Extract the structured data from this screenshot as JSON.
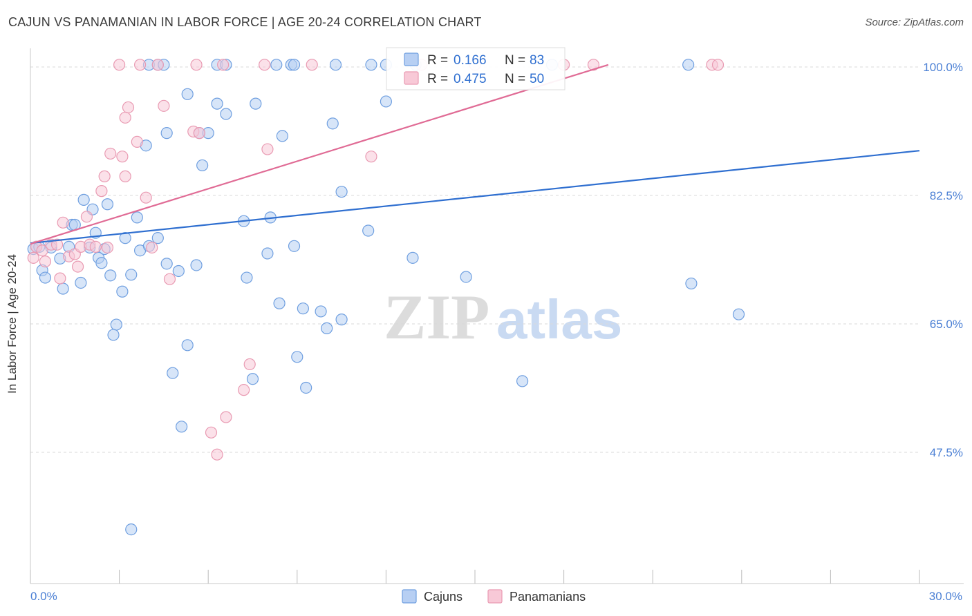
{
  "header": {
    "title": "CAJUN VS PANAMANIAN IN LABOR FORCE | AGE 20-24 CORRELATION CHART",
    "source": "Source: ZipAtlas.com"
  },
  "watermark": {
    "zip": "ZIP",
    "atlas": "atlas"
  },
  "chart_data": {
    "type": "scatter",
    "title": "CAJUN VS PANAMANIAN IN LABOR FORCE | AGE 20-24 CORRELATION CHART",
    "ylabel": "In Labor Force | Age 20-24",
    "xlim": [
      0,
      30
    ],
    "ylim": [
      33,
      101
    ],
    "x_tick_labels": [
      {
        "value": 0,
        "label": "0.0%"
      },
      {
        "value": 30,
        "label": "30.0%"
      }
    ],
    "y_tick_labels": [
      {
        "value": 47.5,
        "label": "47.5%"
      },
      {
        "value": 65.0,
        "label": "65.0%"
      },
      {
        "value": 82.5,
        "label": "82.5%"
      },
      {
        "value": 100.0,
        "label": "100.0%"
      }
    ],
    "grid": "horizontal dashed",
    "legend_placement": "top-center",
    "series": [
      {
        "name": "Cajuns",
        "color": "#6f9fe0",
        "fill": "#b7cff3",
        "line_color": "#2f6fd0",
        "R": "0.166",
        "N": "83",
        "trend": {
          "x": [
            0,
            30
          ],
          "y": [
            76.0,
            88.6
          ]
        },
        "points": [
          [
            0.2,
            75.5
          ],
          [
            0.4,
            72.3
          ],
          [
            0.5,
            71.3
          ],
          [
            0.7,
            75.4
          ],
          [
            1.0,
            73.9
          ],
          [
            1.1,
            69.8
          ],
          [
            1.4,
            78.5
          ],
          [
            1.7,
            70.6
          ],
          [
            1.8,
            81.9
          ],
          [
            1.5,
            78.5
          ],
          [
            2.1,
            80.6
          ],
          [
            2.2,
            77.4
          ],
          [
            2.3,
            74.0
          ],
          [
            2.4,
            73.3
          ],
          [
            2.5,
            75.2
          ],
          [
            2.6,
            81.3
          ],
          [
            2.7,
            71.6
          ],
          [
            2.9,
            64.9
          ],
          [
            2.8,
            63.5
          ],
          [
            3.1,
            69.4
          ],
          [
            3.2,
            76.7
          ],
          [
            3.4,
            71.7
          ],
          [
            3.6,
            79.5
          ],
          [
            3.7,
            75.0
          ],
          [
            3.9,
            89.3
          ],
          [
            4.0,
            75.6
          ],
          [
            4.3,
            76.7
          ],
          [
            4.6,
            73.2
          ],
          [
            4.6,
            91.0
          ],
          [
            4.8,
            58.3
          ],
          [
            5.0,
            72.2
          ],
          [
            5.1,
            51.0
          ],
          [
            5.3,
            96.3
          ],
          [
            5.3,
            62.1
          ],
          [
            5.6,
            73.0
          ],
          [
            5.7,
            91.0
          ],
          [
            5.8,
            86.6
          ],
          [
            6.0,
            91.0
          ],
          [
            6.3,
            95.0
          ],
          [
            6.6,
            93.6
          ],
          [
            7.2,
            79.0
          ],
          [
            7.3,
            71.3
          ],
          [
            7.6,
            95.0
          ],
          [
            8.0,
            74.6
          ],
          [
            8.1,
            79.5
          ],
          [
            8.4,
            67.8
          ],
          [
            8.5,
            90.6
          ],
          [
            8.9,
            75.6
          ],
          [
            9.0,
            60.5
          ],
          [
            9.2,
            67.1
          ],
          [
            9.3,
            56.3
          ],
          [
            9.8,
            66.7
          ],
          [
            10.0,
            64.4
          ],
          [
            10.2,
            92.3
          ],
          [
            10.5,
            65.6
          ],
          [
            10.5,
            83.0
          ],
          [
            11.4,
            77.7
          ],
          [
            12.0,
            95.3
          ],
          [
            12.9,
            74.0
          ],
          [
            13.0,
            100.3
          ],
          [
            14.7,
            71.4
          ],
          [
            16.6,
            57.2
          ],
          [
            22.3,
            70.5
          ],
          [
            23.9,
            66.3
          ],
          [
            10.3,
            100.3
          ],
          [
            11.5,
            100.3
          ],
          [
            12.0,
            100.3
          ],
          [
            6.3,
            100.3
          ],
          [
            6.6,
            100.3
          ],
          [
            8.3,
            100.3
          ],
          [
            8.8,
            100.3
          ],
          [
            8.9,
            100.3
          ],
          [
            4.0,
            100.3
          ],
          [
            4.3,
            100.3
          ],
          [
            4.5,
            100.3
          ],
          [
            7.5,
            57.5
          ],
          [
            3.4,
            37.0
          ],
          [
            0.1,
            75.2
          ],
          [
            1.3,
            75.5
          ],
          [
            2.0,
            75.4
          ],
          [
            0.3,
            75.5
          ],
          [
            17.6,
            100.3
          ],
          [
            22.2,
            100.3
          ]
        ]
      },
      {
        "name": "Panamanians",
        "color": "#e99ab2",
        "fill": "#f8c9d7",
        "line_color": "#e06b95",
        "R": "0.475",
        "N": "50",
        "trend": {
          "x": [
            0,
            19.5
          ],
          "y": [
            75.9,
            100.3
          ]
        },
        "points": [
          [
            0.1,
            74.0
          ],
          [
            0.2,
            75.5
          ],
          [
            0.4,
            75.0
          ],
          [
            0.5,
            73.5
          ],
          [
            0.7,
            75.8
          ],
          [
            0.9,
            75.8
          ],
          [
            1.0,
            71.2
          ],
          [
            1.1,
            78.8
          ],
          [
            1.3,
            74.2
          ],
          [
            1.5,
            74.5
          ],
          [
            1.6,
            72.8
          ],
          [
            1.7,
            75.5
          ],
          [
            1.9,
            79.6
          ],
          [
            2.0,
            75.8
          ],
          [
            2.2,
            75.5
          ],
          [
            2.4,
            83.1
          ],
          [
            2.5,
            85.1
          ],
          [
            2.6,
            75.4
          ],
          [
            2.7,
            88.2
          ],
          [
            3.2,
            93.1
          ],
          [
            3.1,
            87.8
          ],
          [
            3.3,
            94.5
          ],
          [
            3.2,
            85.1
          ],
          [
            3.6,
            89.8
          ],
          [
            3.9,
            82.2
          ],
          [
            4.1,
            75.4
          ],
          [
            4.5,
            94.7
          ],
          [
            4.7,
            71.1
          ],
          [
            5.5,
            91.2
          ],
          [
            5.7,
            91.0
          ],
          [
            6.1,
            50.2
          ],
          [
            6.3,
            47.2
          ],
          [
            6.6,
            52.3
          ],
          [
            7.2,
            56.0
          ],
          [
            7.4,
            59.5
          ],
          [
            8.0,
            88.8
          ],
          [
            11.5,
            87.8
          ],
          [
            3.0,
            100.3
          ],
          [
            3.7,
            100.3
          ],
          [
            4.3,
            100.3
          ],
          [
            5.6,
            100.3
          ],
          [
            6.5,
            100.3
          ],
          [
            7.9,
            100.3
          ],
          [
            9.5,
            100.3
          ],
          [
            13.2,
            100.3
          ],
          [
            15.0,
            100.3
          ],
          [
            18.0,
            100.3
          ],
          [
            19.0,
            100.3
          ],
          [
            23.0,
            100.3
          ],
          [
            23.2,
            100.3
          ]
        ]
      }
    ]
  }
}
